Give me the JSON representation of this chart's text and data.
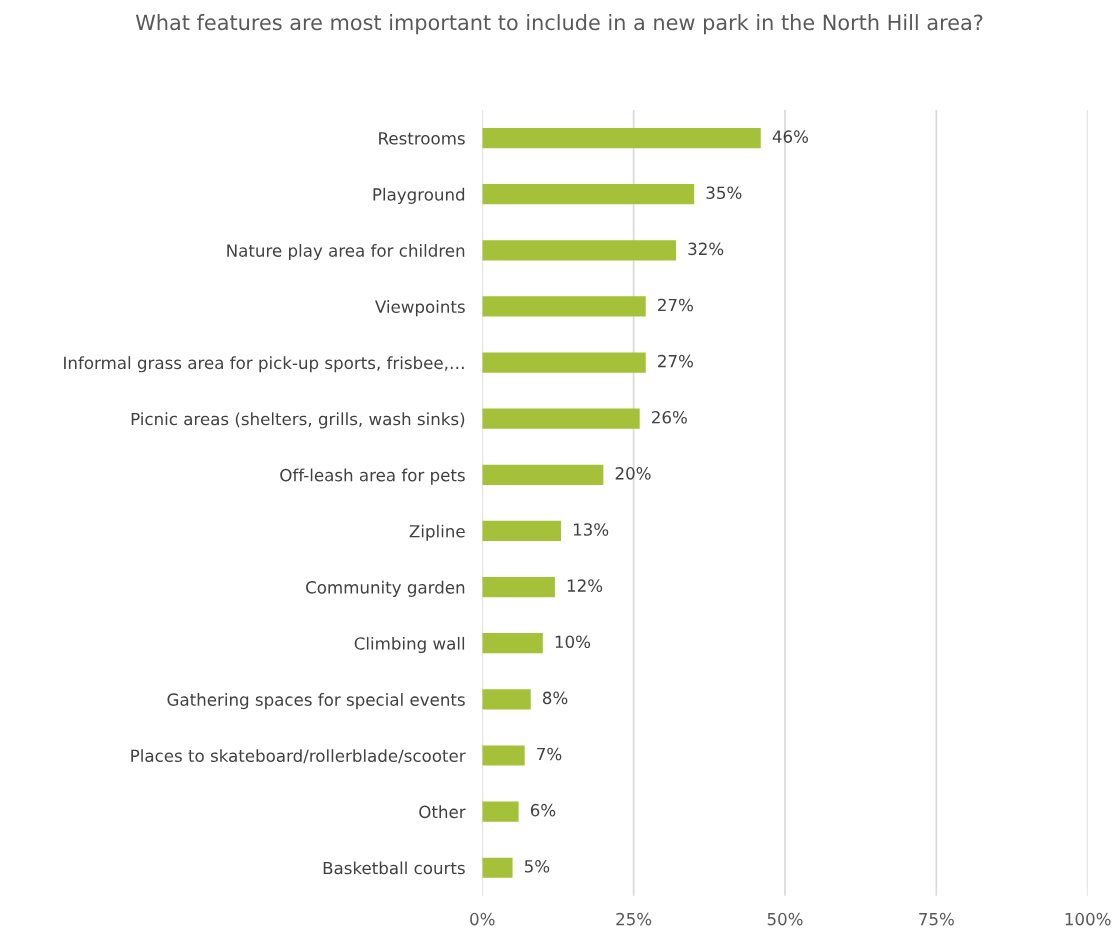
{
  "chart_data": {
    "type": "bar",
    "orientation": "horizontal",
    "title": "What features are most important to include in a new park in the North Hill area?",
    "categories": [
      "Restrooms",
      "Playground",
      "Nature play area for children",
      "Viewpoints",
      "Informal grass area for pick-up sports, frisbee,…",
      "Picnic areas (shelters, grills, wash sinks)",
      "Off-leash area for pets",
      "Zipline",
      "Community garden",
      "Climbing wall",
      "Gathering spaces for special events",
      "Places to skateboard/rollerblade/scooter",
      "Other",
      "Basketball courts"
    ],
    "values": [
      46,
      35,
      32,
      27,
      27,
      26,
      20,
      13,
      12,
      10,
      8,
      7,
      6,
      5
    ],
    "value_labels": [
      "46%",
      "35%",
      "32%",
      "27%",
      "27%",
      "26%",
      "20%",
      "13%",
      "12%",
      "10%",
      "8%",
      "7%",
      "6%",
      "5%"
    ],
    "color": "#a5c13a",
    "xlim": [
      0,
      100
    ],
    "xticks": [
      {
        "value": 0,
        "label": "0%"
      },
      {
        "value": 25,
        "label": "25%"
      },
      {
        "value": 50,
        "label": "50%"
      },
      {
        "value": 75,
        "label": "75%"
      },
      {
        "value": 100,
        "label": "100%"
      }
    ],
    "grid": "x"
  }
}
